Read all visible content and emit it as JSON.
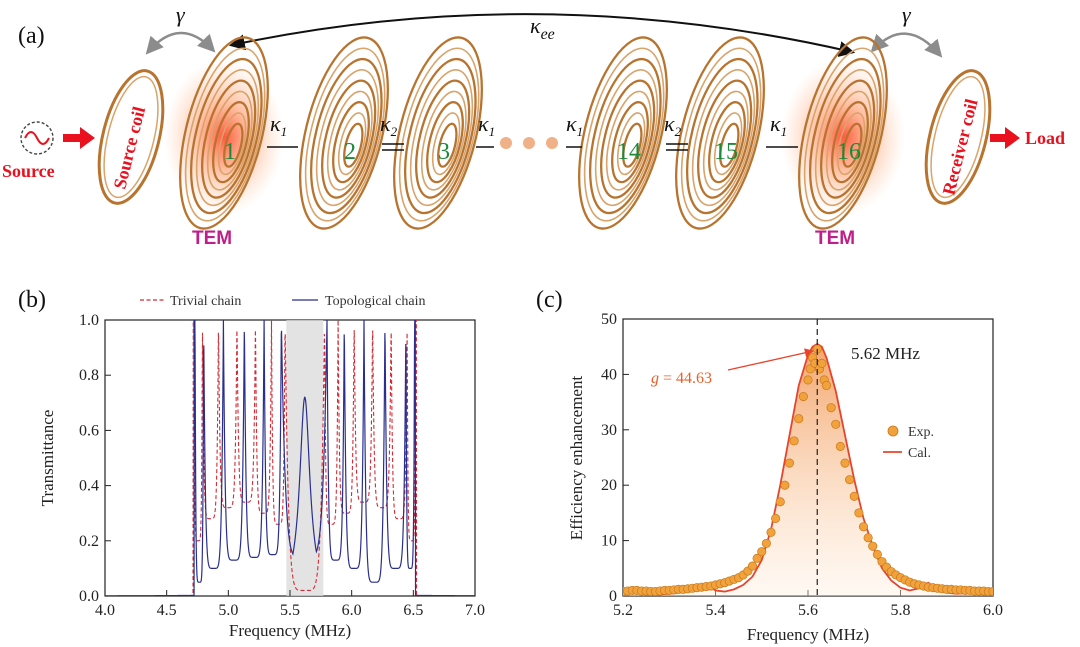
{
  "schematic": {
    "panel_label": "(a)",
    "kappa_ee": "κ",
    "kappa_ee_sub": "ee",
    "gamma": "γ",
    "source_label": "Source",
    "source_coil_label": "Source coil",
    "receiver_coil_label": "Receiver coil",
    "load_label": "Load",
    "tem_label": "TEM",
    "kappa1": "κ",
    "kappa1_sub": "1",
    "kappa2": "κ",
    "kappa2_sub": "2",
    "coil_numbers": [
      "1",
      "2",
      "3",
      "14",
      "15",
      "16"
    ],
    "colors": {
      "coil": "#b8742f",
      "glow": "#ff5a2a",
      "tem": "#c01f8a",
      "arrow_red": "#e8111d",
      "number_green": "#1a8a3a",
      "number_red": "#e01010",
      "dots": "#f0b088"
    }
  },
  "chart_data": [
    {
      "panel": "(b)",
      "type": "line",
      "xlabel": "Frequency (MHz)",
      "ylabel": "Transmittance",
      "xlim": [
        4.0,
        7.0
      ],
      "ylim": [
        0.0,
        1.0
      ],
      "xticks": [
        "4.0",
        "4.5",
        "5.0",
        "5.5",
        "6.0",
        "6.5",
        "7.0"
      ],
      "yticks": [
        "0.0",
        "0.2",
        "0.4",
        "0.6",
        "0.8",
        "1.0"
      ],
      "shaded_band": [
        5.47,
        5.77
      ],
      "legend": "top",
      "series": [
        {
          "name": "Trivial chain",
          "style": "dashed",
          "color": "#d42b35",
          "resonances": [
            4.72,
            4.79,
            4.92,
            5.07,
            5.22,
            5.35,
            5.46,
            5.78,
            5.89,
            6.02,
            6.17,
            6.32,
            6.45,
            6.52
          ],
          "valley_floors": [
            0.2,
            0.28,
            0.32,
            0.34,
            0.3,
            0.26,
            0.02,
            0.26,
            0.3,
            0.34,
            0.32,
            0.28,
            0.2
          ]
        },
        {
          "name": "Topological chain",
          "style": "solid",
          "color": "#2a2f8f",
          "resonances": [
            4.73,
            4.8,
            4.96,
            5.13,
            5.29,
            5.43,
            5.8,
            5.94,
            6.1,
            6.27,
            6.44,
            6.51
          ],
          "valley_floors": [
            0.05,
            0.1,
            0.13,
            0.14,
            0.15,
            0.14,
            0.13,
            0.1,
            0.05
          ],
          "edge_peak": {
            "x": 5.62,
            "y": 0.72
          }
        }
      ]
    },
    {
      "panel": "(c)",
      "type": "scatter",
      "xlabel": "Frequency (MHz)",
      "ylabel": "Efficiency enhancement",
      "xlim": [
        5.2,
        6.0
      ],
      "ylim": [
        0,
        50
      ],
      "xticks": [
        "5.2",
        "5.4",
        "5.6",
        "5.8",
        "6.0"
      ],
      "yticks": [
        "0",
        "10",
        "20",
        "30",
        "40",
        "50"
      ],
      "peak_frequency_label": "5.62 MHz",
      "peak_x": 5.62,
      "annotation": {
        "prefix": "g",
        "text": " = 44.63",
        "value": 44.63
      },
      "legend": "right",
      "series": [
        {
          "name": "Exp.",
          "marker": "circle",
          "color": "#f2a23c"
        },
        {
          "name": "Cal.",
          "marker": "line",
          "color": "#e8442c"
        }
      ],
      "cal_curve": {
        "x": [
          5.2,
          5.22,
          5.24,
          5.26,
          5.28,
          5.3,
          5.32,
          5.34,
          5.36,
          5.38,
          5.4,
          5.42,
          5.44,
          5.46,
          5.48,
          5.5,
          5.52,
          5.54,
          5.56,
          5.58,
          5.6,
          5.61,
          5.62,
          5.63,
          5.64,
          5.66,
          5.68,
          5.7,
          5.72,
          5.74,
          5.76,
          5.78,
          5.8,
          5.82,
          5.84,
          5.86,
          5.88,
          5.9,
          5.92,
          5.94,
          5.96,
          5.98,
          6.0
        ],
        "y": [
          0.5,
          1.4,
          0.9,
          0.4,
          0.3,
          0.4,
          0.6,
          0.9,
          1.4,
          2.2,
          1.0,
          0.8,
          1.2,
          2.0,
          3.5,
          6.5,
          12,
          20,
          29,
          38,
          43.5,
          45,
          45.5,
          45,
          43,
          37,
          29,
          21,
          14,
          9,
          5,
          2.8,
          1.5,
          1.0,
          1.4,
          2.4,
          1.2,
          0.6,
          0.4,
          0.5,
          0.7,
          0.9,
          1.2
        ]
      },
      "exp_points": {
        "x": [
          5.2,
          5.21,
          5.22,
          5.23,
          5.24,
          5.25,
          5.26,
          5.27,
          5.28,
          5.29,
          5.3,
          5.31,
          5.32,
          5.33,
          5.34,
          5.35,
          5.36,
          5.37,
          5.38,
          5.39,
          5.4,
          5.41,
          5.42,
          5.43,
          5.44,
          5.45,
          5.46,
          5.47,
          5.48,
          5.49,
          5.5,
          5.51,
          5.52,
          5.53,
          5.54,
          5.55,
          5.56,
          5.57,
          5.58,
          5.59,
          5.6,
          5.605,
          5.61,
          5.615,
          5.62,
          5.625,
          5.63,
          5.635,
          5.64,
          5.65,
          5.66,
          5.67,
          5.68,
          5.69,
          5.7,
          5.71,
          5.72,
          5.73,
          5.74,
          5.75,
          5.76,
          5.77,
          5.78,
          5.79,
          5.8,
          5.81,
          5.82,
          5.83,
          5.84,
          5.85,
          5.86,
          5.87,
          5.88,
          5.89,
          5.9,
          5.91,
          5.92,
          5.93,
          5.94,
          5.95,
          5.96,
          5.97,
          5.98,
          5.99,
          6.0
        ],
        "y": [
          0.8,
          0.9,
          1.0,
          1.0,
          0.9,
          0.9,
          0.8,
          0.8,
          0.9,
          1.0,
          1.0,
          1.1,
          1.2,
          1.2,
          1.3,
          1.4,
          1.5,
          1.6,
          1.7,
          1.8,
          2.0,
          2.2,
          2.4,
          2.7,
          3.0,
          3.3,
          3.8,
          4.5,
          5.4,
          6.8,
          8.0,
          9.5,
          11.5,
          14,
          17,
          20,
          24,
          28,
          32,
          36,
          39,
          41,
          43,
          42,
          44.6,
          41,
          42,
          39,
          38,
          34,
          31,
          27,
          24,
          21,
          18,
          15,
          12.5,
          10.5,
          9,
          7.5,
          6.2,
          5.2,
          4.4,
          3.8,
          3.3,
          2.9,
          2.5,
          2.2,
          2.0,
          1.8,
          1.6,
          1.5,
          1.4,
          1.3,
          1.2,
          1.2,
          1.1,
          1.1,
          1.0,
          1.0,
          0.9,
          0.9,
          0.9,
          0.8,
          0.8
        ]
      }
    }
  ]
}
